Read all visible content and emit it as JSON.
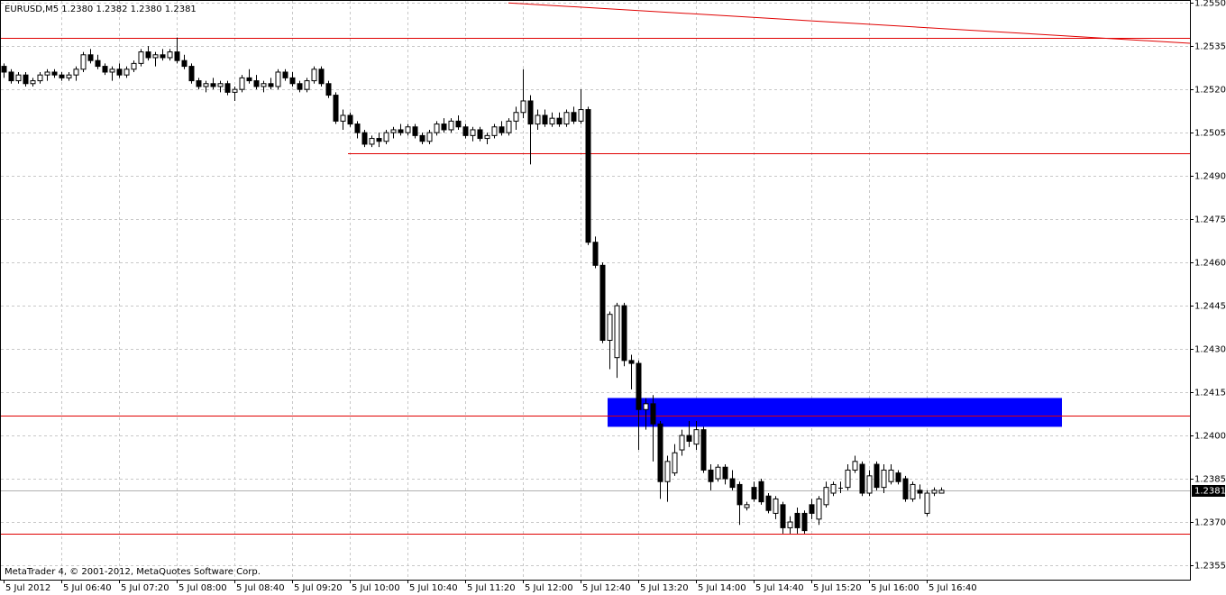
{
  "chart_data": {
    "type": "candlestick",
    "title": "EURUSD,M5  1.2380 1.2382 1.2380 1.2381",
    "footer": "MetaTrader 4, © 2001-2012, MetaQuotes Software Corp.",
    "categories": [
      "5 Jul 2012",
      null,
      null,
      null,
      null,
      null,
      null,
      null,
      "5 Jul 06:40",
      null,
      null,
      null,
      null,
      null,
      null,
      null,
      "5 Jul 07:20",
      null,
      null,
      null,
      null,
      null,
      null,
      null,
      "5 Jul 08:00",
      null,
      null,
      null,
      null,
      null,
      null,
      null,
      "5 Jul 08:40",
      null,
      null,
      null,
      null,
      null,
      null,
      null,
      "5 Jul 09:20",
      null,
      null,
      null,
      null,
      null,
      null,
      null,
      "5 Jul 10:00",
      null,
      null,
      null,
      null,
      null,
      null,
      null,
      "5 Jul 10:40",
      null,
      null,
      null,
      null,
      null,
      null,
      null,
      "5 Jul 11:20",
      null,
      null,
      null,
      null,
      null,
      null,
      null,
      "5 Jul 12:00",
      null,
      null,
      null,
      null,
      null,
      null,
      null,
      "5 Jul 12:40",
      null,
      null,
      null,
      null,
      null,
      null,
      null,
      "5 Jul 13:20",
      null,
      null,
      null,
      null,
      null,
      null,
      null,
      "5 Jul 14:00",
      null,
      null,
      null,
      null,
      null,
      null,
      null,
      "5 Jul 14:40",
      null,
      null,
      null,
      null,
      null,
      null,
      null,
      "5 Jul 15:20",
      null,
      null,
      null,
      null,
      null,
      null,
      null,
      "5 Jul 16:00",
      null,
      null,
      null,
      null,
      null,
      null,
      null,
      "5 Jul 16:40",
      null,
      null
    ],
    "open": [
      1.2528,
      1.2526,
      1.2523,
      1.2525,
      1.2522,
      1.2523,
      1.2525,
      1.2526,
      1.2525,
      1.2524,
      1.2525,
      1.2527,
      1.2532,
      1.253,
      1.2528,
      1.2526,
      1.2527,
      1.2525,
      1.2527,
      1.2529,
      1.2533,
      1.2531,
      1.2532,
      1.2531,
      1.2533,
      1.253,
      1.2528,
      1.2523,
      1.2521,
      1.2522,
      1.2521,
      1.2522,
      1.2519,
      1.252,
      1.2524,
      1.2523,
      1.2521,
      1.2522,
      1.2521,
      1.2526,
      1.2524,
      1.2522,
      1.252,
      1.2523,
      1.2527,
      1.2522,
      1.2518,
      1.2509,
      1.2511,
      1.2508,
      1.2505,
      1.2501,
      1.2503,
      1.2502,
      1.2505,
      1.2506,
      1.2505,
      1.2507,
      1.2504,
      1.2502,
      1.2505,
      1.2508,
      1.2506,
      1.2509,
      1.2507,
      1.2504,
      1.2506,
      1.2503,
      1.2504,
      1.2507,
      1.2505,
      1.2509,
      1.2512,
      1.2516,
      1.2508,
      1.2511,
      1.2508,
      1.251,
      1.2508,
      1.2512,
      1.2509,
      1.2513,
      1.2467,
      1.2459,
      1.2433,
      1.2427,
      1.2445,
      1.2426,
      1.2425,
      1.2409,
      1.2411,
      1.2404,
      1.2384,
      1.2387,
      1.2395,
      1.24,
      1.2397,
      1.2402,
      1.2388,
      1.2385,
      1.2389,
      1.2385,
      1.2383,
      1.2375,
      1.2382,
      1.2384,
      1.2379,
      1.2373,
      1.2376,
      1.2368,
      1.2373,
      1.2373,
      1.2376,
      1.2371,
      1.2376,
      1.238,
      1.2382,
      1.2382,
      1.2388,
      1.239,
      1.238,
      1.239,
      1.2382,
      1.2384,
      1.2387,
      1.2385,
      1.2378,
      1.2381,
      1.2373,
      1.238,
      1.238
    ],
    "high": [
      1.2529,
      1.2527,
      1.2526,
      1.2526,
      1.2524,
      1.2526,
      1.2527,
      1.2527,
      1.2526,
      1.2526,
      1.2528,
      1.2533,
      1.2534,
      1.2532,
      1.2529,
      1.2528,
      1.2529,
      1.2528,
      1.253,
      1.2534,
      1.2535,
      1.2533,
      1.2534,
      1.2534,
      1.2538,
      1.2532,
      1.2529,
      1.2524,
      1.2523,
      1.2524,
      1.2523,
      1.2523,
      1.2521,
      1.2525,
      1.2527,
      1.2525,
      1.2523,
      1.2524,
      1.2527,
      1.2527,
      1.2526,
      1.2523,
      1.2524,
      1.2528,
      1.2528,
      1.2523,
      1.2519,
      1.2513,
      1.2512,
      1.2509,
      1.2506,
      1.2504,
      1.2505,
      1.2506,
      1.2507,
      1.2508,
      1.2508,
      1.2508,
      1.2505,
      1.2506,
      1.2509,
      1.251,
      1.251,
      1.2511,
      1.2508,
      1.2507,
      1.2507,
      1.2505,
      1.2508,
      1.2509,
      1.251,
      1.2514,
      1.2527,
      1.2518,
      1.2513,
      1.2513,
      1.2512,
      1.2512,
      1.2513,
      1.2514,
      1.252,
      1.2514,
      1.2469,
      1.246,
      1.2443,
      1.2446,
      1.2446,
      1.2428,
      1.2426,
      1.2413,
      1.2414,
      1.2405,
      1.2393,
      1.2397,
      1.2402,
      1.2405,
      1.2405,
      1.2403,
      1.239,
      1.239,
      1.239,
      1.2388,
      1.2384,
      1.2377,
      1.2384,
      1.2385,
      1.238,
      1.2379,
      1.2377,
      1.2372,
      1.2375,
      1.2374,
      1.2378,
      1.2379,
      1.2384,
      1.2384,
      1.2384,
      1.239,
      1.2393,
      1.2391,
      1.2388,
      1.2391,
      1.239,
      1.239,
      1.2388,
      1.2386,
      1.2384,
      1.2383,
      1.2381,
      1.2382,
      1.2382
    ],
    "low": [
      1.2524,
      1.2522,
      1.2522,
      1.2521,
      1.2521,
      1.2522,
      1.2523,
      1.2524,
      1.2523,
      1.2523,
      1.2523,
      1.2526,
      1.2529,
      1.2527,
      1.2525,
      1.2523,
      1.2524,
      1.2524,
      1.2526,
      1.2528,
      1.253,
      1.2528,
      1.253,
      1.253,
      1.2529,
      1.2527,
      1.2522,
      1.252,
      1.2519,
      1.252,
      1.2519,
      1.2518,
      1.2516,
      1.2519,
      1.2522,
      1.252,
      1.2519,
      1.252,
      1.252,
      1.2523,
      1.2521,
      1.2519,
      1.2519,
      1.2522,
      1.2521,
      1.2517,
      1.2508,
      1.2506,
      1.2507,
      1.2503,
      1.25,
      1.25,
      1.25,
      1.2501,
      1.2503,
      1.2504,
      1.2504,
      1.2503,
      1.2501,
      1.2501,
      1.2504,
      1.2505,
      1.2505,
      1.2506,
      1.2503,
      1.2502,
      1.2502,
      1.2501,
      1.2503,
      1.2504,
      1.2504,
      1.2506,
      1.251,
      1.2494,
      1.2506,
      1.2507,
      1.2507,
      1.2507,
      1.2507,
      1.2508,
      1.2508,
      1.2466,
      1.2458,
      1.2432,
      1.2423,
      1.242,
      1.2424,
      1.2416,
      1.2395,
      1.2402,
      1.2391,
      1.2378,
      1.2377,
      1.2386,
      1.2393,
      1.2396,
      1.2395,
      1.2387,
      1.2381,
      1.2384,
      1.2383,
      1.2381,
      1.2369,
      1.2374,
      1.2377,
      1.2376,
      1.2373,
      1.2371,
      1.2366,
      1.2366,
      1.2366,
      1.2366,
      1.2371,
      1.2369,
      1.2375,
      1.2379,
      1.238,
      1.2381,
      1.2387,
      1.2379,
      1.2379,
      1.2381,
      1.238,
      1.2383,
      1.2383,
      1.2377,
      1.2377,
      1.2378,
      1.2372,
      1.2379,
      1.238
    ],
    "close": [
      1.2526,
      1.2523,
      1.2525,
      1.2522,
      1.2523,
      1.2525,
      1.2526,
      1.2525,
      1.2524,
      1.2525,
      1.2527,
      1.2532,
      1.253,
      1.2528,
      1.2526,
      1.2527,
      1.2525,
      1.2527,
      1.2529,
      1.2533,
      1.2531,
      1.2532,
      1.2531,
      1.2533,
      1.253,
      1.2528,
      1.2523,
      1.2521,
      1.2522,
      1.2521,
      1.2522,
      1.2519,
      1.252,
      1.2524,
      1.2523,
      1.2521,
      1.2522,
      1.2521,
      1.2526,
      1.2524,
      1.2522,
      1.252,
      1.2523,
      1.2527,
      1.2522,
      1.2518,
      1.2509,
      1.2511,
      1.2508,
      1.2505,
      1.2501,
      1.2503,
      1.2502,
      1.2505,
      1.2506,
      1.2505,
      1.2507,
      1.2504,
      1.2502,
      1.2505,
      1.2508,
      1.2506,
      1.2509,
      1.2507,
      1.2504,
      1.2506,
      1.2503,
      1.2504,
      1.2507,
      1.2505,
      1.2509,
      1.2512,
      1.2516,
      1.2508,
      1.2511,
      1.2508,
      1.251,
      1.2508,
      1.2512,
      1.2509,
      1.2513,
      1.2467,
      1.2459,
      1.2433,
      1.2442,
      1.2445,
      1.2426,
      1.2425,
      1.2409,
      1.2411,
      1.2404,
      1.2384,
      1.2391,
      1.2394,
      1.24,
      1.2398,
      1.2402,
      1.2388,
      1.2384,
      1.2389,
      1.2385,
      1.2382,
      1.2376,
      1.2376,
      1.2378,
      1.2377,
      1.2374,
      1.2378,
      1.2368,
      1.237,
      1.2368,
      1.2367,
      1.2373,
      1.2378,
      1.2382,
      1.2383,
      1.2382,
      1.2388,
      1.2391,
      1.238,
      1.2386,
      1.2382,
      1.2388,
      1.2388,
      1.2384,
      1.2378,
      1.2383,
      1.238,
      1.238,
      1.2381,
      1.2381
    ],
    "up_color": "#ffffff",
    "down_color": "#000000",
    "ylim": [
      1.235,
      1.2551
    ],
    "yticks": [
      {
        "value": 1.255,
        "label": "1.2550"
      },
      {
        "value": 1.2535,
        "label": "1.2535"
      },
      {
        "value": 1.252,
        "label": "1.2520"
      },
      {
        "value": 1.2505,
        "label": "1.2505"
      },
      {
        "value": 1.249,
        "label": "1.2490"
      },
      {
        "value": 1.2475,
        "label": "1.2475"
      },
      {
        "value": 1.246,
        "label": "1.2460"
      },
      {
        "value": 1.2445,
        "label": "1.2445"
      },
      {
        "value": 1.243,
        "label": "1.2430"
      },
      {
        "value": 1.2415,
        "label": "1.2415"
      },
      {
        "value": 1.24,
        "label": "1.2400"
      },
      {
        "value": 1.2385,
        "label": "1.2385"
      },
      {
        "value": 1.237,
        "label": "1.2370"
      },
      {
        "value": 1.2355,
        "label": "1.2355"
      }
    ],
    "grid": true,
    "current_price": {
      "value": 1.2381,
      "label": "1.2381"
    },
    "line_color": "#e00000",
    "hlines": [
      {
        "price": 1.2538
      },
      {
        "price": 1.2498,
        "from": 48
      },
      {
        "price": 1.2407
      },
      {
        "price": 1.2366
      }
    ],
    "trendline": {
      "from": [
        70,
        1.255
      ],
      "to": [
        165,
        1.2536
      ]
    },
    "zone": {
      "from": 84,
      "to": 147,
      "low": 1.2403,
      "high": 1.2413,
      "color": "#0000ff"
    }
  }
}
